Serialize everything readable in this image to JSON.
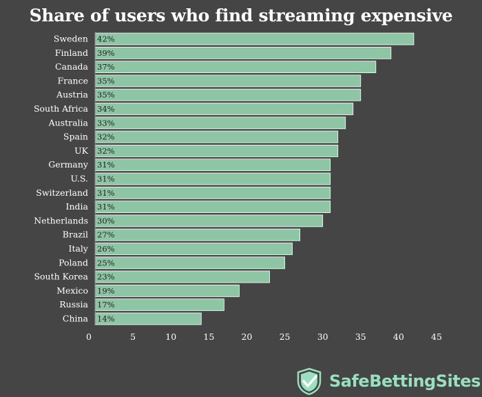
{
  "chart_data": {
    "type": "bar",
    "orientation": "horizontal",
    "title": "Share of users who find streaming expensive",
    "categories": [
      "Sweden",
      "Finland",
      "Canada",
      "France",
      "Austria",
      "South Africa",
      "Australia",
      "Spain",
      "UK",
      "Germany",
      "U.S.",
      "Switzerland",
      "India",
      "Netherlands",
      "Brazil",
      "Italy",
      "Poland",
      "South Korea",
      "Mexico",
      "Russia",
      "China"
    ],
    "values": [
      42,
      39,
      37,
      35,
      35,
      34,
      33,
      32,
      32,
      31,
      31,
      31,
      31,
      30,
      27,
      26,
      25,
      23,
      19,
      17,
      14
    ],
    "data_labels": [
      "42%",
      "39%",
      "37%",
      "35%",
      "35%",
      "34%",
      "33%",
      "32%",
      "32%",
      "31%",
      "31%",
      "31%",
      "31%",
      "30%",
      "27%",
      "26%",
      "25%",
      "23%",
      "19%",
      "17%",
      "14%"
    ],
    "x_ticks": [
      0,
      5,
      10,
      15,
      20,
      25,
      30,
      35,
      40,
      45
    ],
    "xlim": [
      0,
      45
    ],
    "grid": false,
    "legend": "none",
    "colors": {
      "bar": "#8ec5a5",
      "background": "#454545"
    }
  },
  "brand": {
    "name": "SafeBettingSites",
    "icon": "shield-check-icon",
    "color": "#9adfc0"
  }
}
